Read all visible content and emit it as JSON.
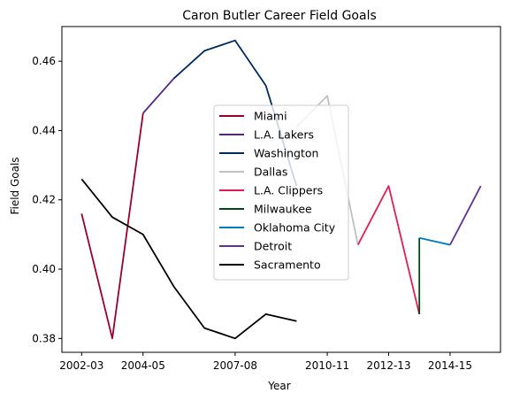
{
  "chart_data": {
    "type": "line",
    "title": "Caron Butler Career Field Goals",
    "xlabel": "Year",
    "ylabel": "Field Goals",
    "x_categories": [
      "2002-03",
      "2003-04",
      "2004-05",
      "2005-06",
      "2006-07",
      "2007-08",
      "2008-09",
      "2009-10",
      "2010-11",
      "2011-12",
      "2012-13",
      "2013-14",
      "2014-15",
      "2015-16"
    ],
    "x_tick_labels": [
      "2002-03",
      "2004-05",
      "2007-08",
      "2010-11",
      "2012-13",
      "2014-15"
    ],
    "y_tick_labels": [
      "0.38",
      "0.40",
      "0.42",
      "0.44",
      "0.46"
    ],
    "ylim": [
      0.376,
      0.47
    ],
    "legend_placement": "center",
    "series": [
      {
        "name": "Miami",
        "color": "#98002E",
        "x": [
          "2002-03",
          "2003-04",
          "2004-05"
        ],
        "y": [
          0.416,
          0.38,
          0.445
        ]
      },
      {
        "name": "L.A. Lakers",
        "color": "#552583",
        "x": [
          "2004-05",
          "2005-06"
        ],
        "y": [
          0.445,
          0.455
        ]
      },
      {
        "name": "Washington",
        "color": "#002B5C",
        "x": [
          "2005-06",
          "2006-07",
          "2007-08",
          "2008-09",
          "2009-10"
        ],
        "y": [
          0.455,
          0.463,
          0.466,
          0.453,
          0.424
        ]
      },
      {
        "name": "Dallas",
        "color": "#BEC0C2",
        "x": [
          "2009-10",
          "2010-11",
          "2011-12"
        ],
        "y": [
          0.441,
          0.45,
          0.407
        ]
      },
      {
        "name": "L.A. Clippers",
        "color": "#E31E53",
        "x": [
          "2011-12",
          "2012-13",
          "2013-14"
        ],
        "y": [
          0.407,
          0.424,
          0.387
        ]
      },
      {
        "name": "Milwaukee",
        "color": "#00471B",
        "x": [
          "2013-14",
          "2013-14"
        ],
        "y": [
          0.387,
          0.409
        ]
      },
      {
        "name": "Oklahoma City",
        "color": "#007AC1",
        "x": [
          "2013-14",
          "2014-15"
        ],
        "y": [
          0.409,
          0.407
        ]
      },
      {
        "name": "Detroit",
        "color": "#603196",
        "x": [
          "2014-15",
          "2015-16"
        ],
        "y": [
          0.407,
          0.424
        ]
      },
      {
        "name": "Sacramento",
        "color": "#000000",
        "x": [
          "2002-03",
          "2003-04",
          "2004-05",
          "2005-06",
          "2006-07",
          "2007-08",
          "2008-09",
          "2009-10"
        ],
        "y": [
          0.426,
          0.415,
          0.41,
          0.395,
          0.383,
          0.38,
          0.387,
          0.385
        ]
      }
    ]
  }
}
